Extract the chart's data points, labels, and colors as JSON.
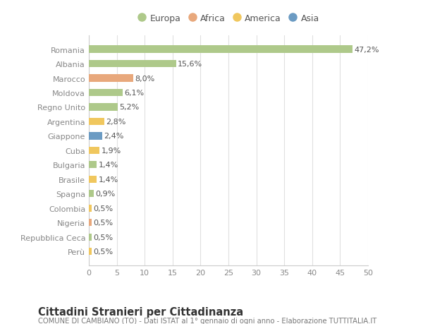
{
  "countries": [
    "Romania",
    "Albania",
    "Marocco",
    "Moldova",
    "Regno Unito",
    "Argentina",
    "Giappone",
    "Cuba",
    "Bulgaria",
    "Brasile",
    "Spagna",
    "Colombia",
    "Nigeria",
    "Repubblica Ceca",
    "Perù"
  ],
  "values": [
    47.2,
    15.6,
    8.0,
    6.1,
    5.2,
    2.8,
    2.4,
    1.9,
    1.4,
    1.4,
    0.9,
    0.5,
    0.5,
    0.5,
    0.5
  ],
  "labels": [
    "47,2%",
    "15,6%",
    "8,0%",
    "6,1%",
    "5,2%",
    "2,8%",
    "2,4%",
    "1,9%",
    "1,4%",
    "1,4%",
    "0,9%",
    "0,5%",
    "0,5%",
    "0,5%",
    "0,5%"
  ],
  "continents": [
    "Europa",
    "Europa",
    "Africa",
    "Europa",
    "Europa",
    "America",
    "Asia",
    "America",
    "Europa",
    "America",
    "Europa",
    "America",
    "Africa",
    "Europa",
    "America"
  ],
  "continent_colors": {
    "Europa": "#aec98a",
    "Africa": "#e8a87c",
    "America": "#f0c75e",
    "Asia": "#6b9bc3"
  },
  "legend_order": [
    "Europa",
    "Africa",
    "America",
    "Asia"
  ],
  "xlim": [
    0,
    50
  ],
  "xticks": [
    0,
    5,
    10,
    15,
    20,
    25,
    30,
    35,
    40,
    45,
    50
  ],
  "title": "Cittadini Stranieri per Cittadinanza",
  "subtitle": "COMUNE DI CAMBIANO (TO) - Dati ISTAT al 1° gennaio di ogni anno - Elaborazione TUTTITALIA.IT",
  "background_color": "#ffffff",
  "plot_bg_color": "#ffffff",
  "grid_color": "#e0e0e0",
  "bar_height": 0.5,
  "label_fontsize": 8,
  "tick_fontsize": 8,
  "title_fontsize": 10.5,
  "subtitle_fontsize": 7.2,
  "ytick_fontsize": 8
}
